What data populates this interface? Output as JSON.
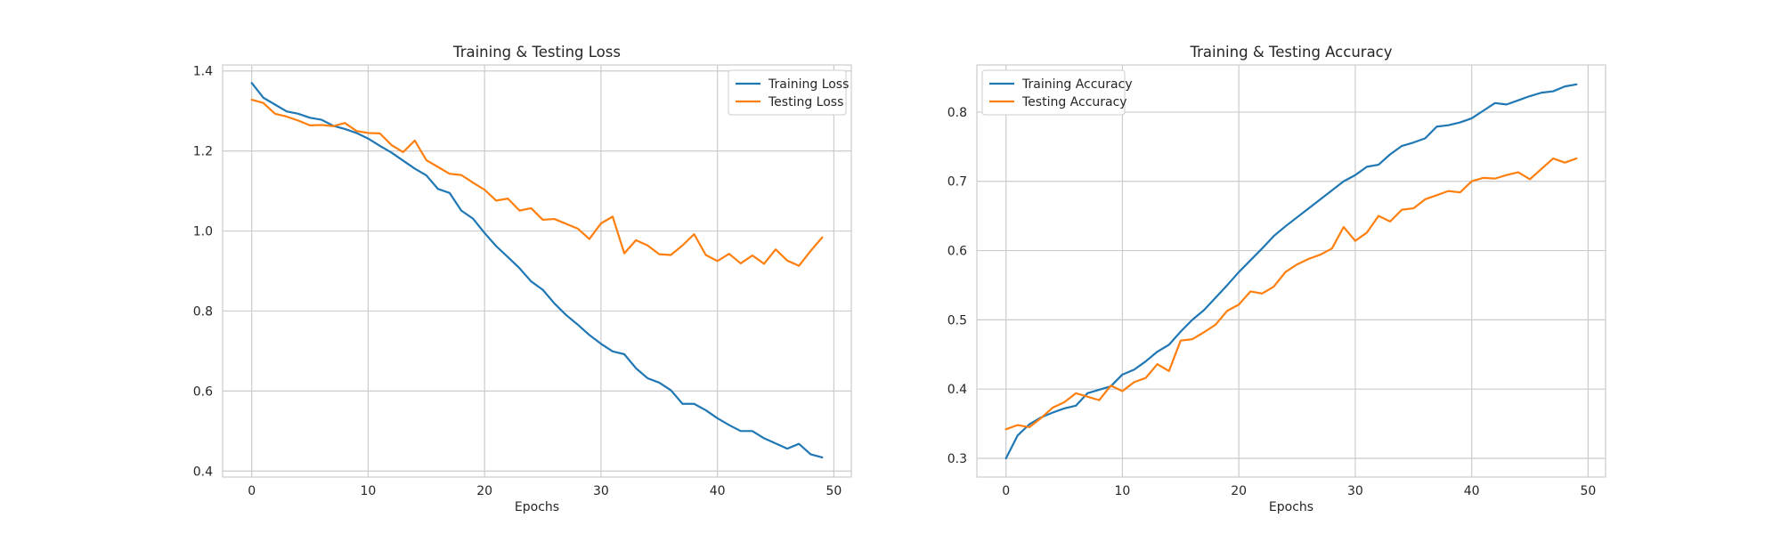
{
  "chart_data": [
    {
      "type": "line",
      "title": "Training & Testing Loss",
      "xlabel": "Epochs",
      "ylabel": "",
      "xlim": [
        -2.5,
        51.5
      ],
      "ylim": [
        0.385,
        1.415
      ],
      "xticks": [
        0,
        10,
        20,
        30,
        40,
        50
      ],
      "yticks": [
        0.4,
        0.6,
        0.8,
        1.0,
        1.2,
        1.4
      ],
      "ytick_labels": [
        "0.4",
        "0.6",
        "0.8",
        "1.0",
        "1.2",
        "1.4"
      ],
      "grid": true,
      "legend_position": "top-right",
      "x": [
        0,
        1,
        2,
        3,
        4,
        5,
        6,
        7,
        8,
        9,
        10,
        11,
        12,
        13,
        14,
        15,
        16,
        17,
        18,
        19,
        20,
        21,
        22,
        23,
        24,
        25,
        26,
        27,
        28,
        29,
        30,
        31,
        32,
        33,
        34,
        35,
        36,
        37,
        38,
        39,
        40,
        41,
        42,
        43,
        44,
        45,
        46,
        47,
        48,
        49
      ],
      "series": [
        {
          "name": "Training Loss",
          "color": "#1f77b4",
          "values": [
            1.37,
            1.333,
            1.316,
            1.299,
            1.293,
            1.283,
            1.278,
            1.263,
            1.255,
            1.245,
            1.231,
            1.213,
            1.196,
            1.176,
            1.156,
            1.139,
            1.105,
            1.095,
            1.051,
            1.031,
            0.995,
            0.962,
            0.935,
            0.907,
            0.874,
            0.853,
            0.819,
            0.79,
            0.766,
            0.74,
            0.718,
            0.699,
            0.692,
            0.657,
            0.632,
            0.621,
            0.602,
            0.568,
            0.568,
            0.552,
            0.532,
            0.515,
            0.5,
            0.5,
            0.482,
            0.469,
            0.456,
            0.468,
            0.442,
            0.434
          ]
        },
        {
          "name": "Testing Loss",
          "color": "#ff7f0e",
          "values": [
            1.328,
            1.32,
            1.293,
            1.286,
            1.276,
            1.264,
            1.265,
            1.262,
            1.27,
            1.25,
            1.245,
            1.244,
            1.215,
            1.197,
            1.226,
            1.177,
            1.16,
            1.143,
            1.14,
            1.121,
            1.103,
            1.076,
            1.081,
            1.051,
            1.057,
            1.028,
            1.03,
            1.018,
            1.006,
            0.98,
            1.019,
            1.036,
            0.944,
            0.977,
            0.964,
            0.942,
            0.94,
            0.964,
            0.992,
            0.94,
            0.925,
            0.943,
            0.919,
            0.939,
            0.918,
            0.954,
            0.926,
            0.913,
            0.95,
            0.984
          ]
        }
      ]
    },
    {
      "type": "line",
      "title": "Training & Testing Accuracy",
      "xlabel": "Epochs",
      "ylabel": "",
      "xlim": [
        -2.5,
        51.5
      ],
      "ylim": [
        0.273,
        0.868
      ],
      "xticks": [
        0,
        10,
        20,
        30,
        40,
        50
      ],
      "yticks": [
        0.3,
        0.4,
        0.5,
        0.6,
        0.7,
        0.8
      ],
      "ytick_labels": [
        "0.3",
        "0.4",
        "0.5",
        "0.6",
        "0.7",
        "0.8"
      ],
      "grid": true,
      "legend_position": "top-left",
      "x": [
        0,
        1,
        2,
        3,
        4,
        5,
        6,
        7,
        8,
        9,
        10,
        11,
        12,
        13,
        14,
        15,
        16,
        17,
        18,
        19,
        20,
        21,
        22,
        23,
        24,
        25,
        26,
        27,
        28,
        29,
        30,
        31,
        32,
        33,
        34,
        35,
        36,
        37,
        38,
        39,
        40,
        41,
        42,
        43,
        44,
        45,
        46,
        47,
        48,
        49
      ],
      "series": [
        {
          "name": "Training Accuracy",
          "color": "#1f77b4",
          "values": [
            0.3,
            0.333,
            0.349,
            0.359,
            0.366,
            0.372,
            0.376,
            0.394,
            0.399,
            0.404,
            0.421,
            0.428,
            0.44,
            0.454,
            0.464,
            0.483,
            0.5,
            0.514,
            0.532,
            0.55,
            0.569,
            0.586,
            0.603,
            0.621,
            0.635,
            0.648,
            0.661,
            0.674,
            0.687,
            0.7,
            0.709,
            0.721,
            0.724,
            0.739,
            0.751,
            0.756,
            0.762,
            0.779,
            0.781,
            0.785,
            0.791,
            0.802,
            0.813,
            0.811,
            0.817,
            0.823,
            0.828,
            0.83,
            0.837,
            0.84
          ]
        },
        {
          "name": "Testing Accuracy",
          "color": "#ff7f0e",
          "values": [
            0.342,
            0.348,
            0.345,
            0.358,
            0.373,
            0.381,
            0.394,
            0.389,
            0.384,
            0.405,
            0.397,
            0.41,
            0.416,
            0.436,
            0.426,
            0.47,
            0.472,
            0.482,
            0.493,
            0.513,
            0.522,
            0.541,
            0.538,
            0.548,
            0.569,
            0.58,
            0.588,
            0.594,
            0.603,
            0.634,
            0.614,
            0.626,
            0.65,
            0.642,
            0.659,
            0.661,
            0.674,
            0.68,
            0.686,
            0.684,
            0.7,
            0.705,
            0.704,
            0.709,
            0.713,
            0.703,
            0.718,
            0.733,
            0.727,
            0.733
          ]
        }
      ]
    }
  ]
}
